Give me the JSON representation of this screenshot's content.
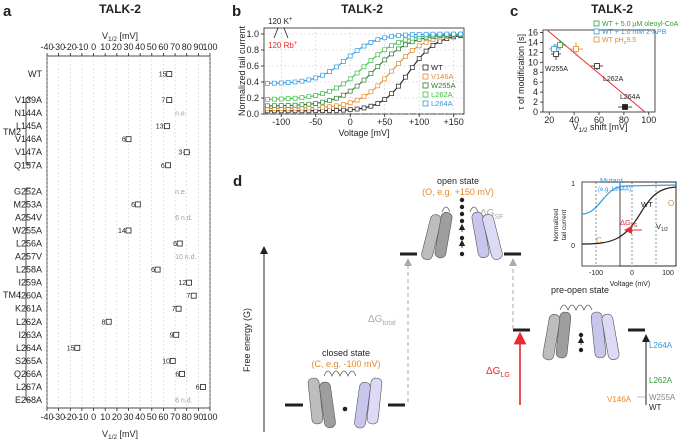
{
  "panel_a": {
    "label": "a",
    "title": "TALK-2",
    "axis_label": "V1/2 [mV]",
    "xlim": [
      -40,
      100
    ],
    "ticks": [
      -40,
      -30,
      -20,
      -10,
      0,
      10,
      20,
      30,
      40,
      50,
      60,
      70,
      80,
      90,
      100
    ],
    "groups": [
      {
        "name": "TM2",
        "from": "V139A",
        "to": "Q157A"
      },
      {
        "name": "TM4",
        "from": "G252A",
        "to": "E268A"
      }
    ],
    "rows": [
      {
        "mutant": "WT",
        "v": 65,
        "n": "15",
        "err": 1.5
      },
      {
        "mutant": "",
        "v": null,
        "n": ""
      },
      {
        "mutant": "V139A",
        "v": 65,
        "n": "7",
        "err": 2.5
      },
      {
        "mutant": "N144A",
        "v": null,
        "n": "n.e."
      },
      {
        "mutant": "L145A",
        "v": 63,
        "n": "13",
        "err": 2
      },
      {
        "mutant": "V146A",
        "v": 30,
        "n": "6",
        "err": 1.5
      },
      {
        "mutant": "V147A",
        "v": 80,
        "n": "3",
        "err": 3
      },
      {
        "mutant": "Q157A",
        "v": 64,
        "n": "6",
        "err": 2
      },
      {
        "mutant": "",
        "v": null,
        "n": ""
      },
      {
        "mutant": "G252A",
        "v": null,
        "n": "n.e."
      },
      {
        "mutant": "M253A",
        "v": 38,
        "n": "6",
        "err": 1.5
      },
      {
        "mutant": "A254V",
        "v": null,
        "n": "6   n.d."
      },
      {
        "mutant": "W255A",
        "v": 30,
        "n": "14",
        "err": 1.5
      },
      {
        "mutant": "L256A",
        "v": 74,
        "n": "6",
        "err": 1.5
      },
      {
        "mutant": "A257V",
        "v": null,
        "n": "10   n.d."
      },
      {
        "mutant": "L258A",
        "v": 55,
        "n": "6",
        "err": 1.5
      },
      {
        "mutant": "I259A",
        "v": 82,
        "n": "12",
        "err": 1.5
      },
      {
        "mutant": "I260A",
        "v": 86,
        "n": "7",
        "err": 2
      },
      {
        "mutant": "K261A",
        "v": 73,
        "n": "7",
        "err": 1.5
      },
      {
        "mutant": "L262A",
        "v": 13,
        "n": "8",
        "err": 2
      },
      {
        "mutant": "I263A",
        "v": 71,
        "n": "9",
        "err": 1.5
      },
      {
        "mutant": "L264A",
        "v": -14,
        "n": "15",
        "err": 1.5
      },
      {
        "mutant": "S265A",
        "v": 68,
        "n": "10",
        "err": 1.5
      },
      {
        "mutant": "Q266A",
        "v": 76,
        "n": "6",
        "err": 1.5
      },
      {
        "mutant": "L267A",
        "v": 94,
        "n": "6",
        "err": 2
      },
      {
        "mutant": "E268A",
        "v": null,
        "n": "6   n.d."
      }
    ]
  },
  "panel_b": {
    "label": "b",
    "title": "TALK-2",
    "annot_k": "120 K",
    "annot_k_sup": "+",
    "annot_rb": "120 Rb",
    "annot_rb_sup": "+",
    "xlabel": "Voltage [mV]",
    "ylabel": "Normalized tail current",
    "xticks": [
      "-100",
      "-50",
      "0",
      "+50",
      "+100",
      "+150"
    ],
    "yticks": [
      "0.0",
      "0.2",
      "0.4",
      "0.6",
      "0.8",
      "1.0"
    ],
    "legend": [
      "WT",
      "V146A",
      "W255A",
      "L262A",
      "L264A"
    ],
    "colors": {
      "WT": "#231f20",
      "V146A": "#e38a2b",
      "W255A": "#2e7d32",
      "L262A": "#3fbd4a",
      "L264A": "#2f9ae0"
    }
  },
  "panel_c": {
    "label": "c",
    "title": "TALK-2",
    "xlabel": "V1/2 shift [mV]",
    "ylabel": "τ of modification [s]",
    "xticks": [
      "20",
      "40",
      "60",
      "80",
      "100"
    ],
    "yticks": [
      "0",
      "2",
      "4",
      "6",
      "8",
      "10",
      "12",
      "14",
      "16"
    ],
    "legend": [
      "WT + 5.0 µM oleoyl-CoA",
      "WT + 1.0 mM 2-APB",
      "WT pH",
      "9.5"
    ],
    "legend_colors": [
      "#2e9c3a",
      "#2f9ae0",
      "#e38a2b"
    ],
    "labels": [
      "W255A",
      "L262A",
      "L264A"
    ]
  },
  "panel_d": {
    "label": "d",
    "yaxis": "Free energy (G)",
    "closed_title": "closed state",
    "closed_sub": "(C, e.g. -100 mV)",
    "open_title": "open state",
    "open_sub": "(O, e.g. +150 mV)",
    "preopen_title": "pre-open state",
    "dg_total": "ΔG",
    "dg_total_sub": "total",
    "dg_sf": "ΔG",
    "dg_sf_sub": "SF",
    "dg_lg": "ΔG",
    "dg_lg_sub": "LG",
    "ladder": [
      "L264A",
      "L262A",
      "W255A",
      "V146A",
      "WT"
    ],
    "inset": {
      "mutant": "Mutant",
      "mutant_eg": "(e.g. L264A)",
      "wt": "WT",
      "c": "C",
      "o": "O",
      "dglg": "ΔG",
      "dglg_sub": "LG",
      "v12": "V",
      "v12_sub": "1/2",
      "ylabel1": "Normalized",
      "ylabel2": "tail current",
      "xlabel": "Voltage (mV)",
      "xticks": [
        "-100",
        "0",
        "100"
      ],
      "yticks": [
        "0",
        "1"
      ]
    }
  }
}
